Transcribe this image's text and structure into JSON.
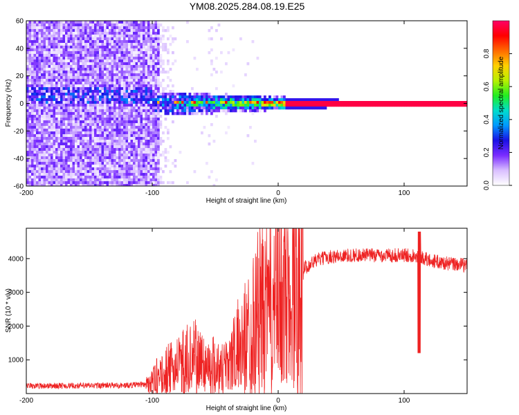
{
  "figure": {
    "title": "YM08.2025.284.08.19.E25"
  },
  "chart_data": [
    {
      "type": "heatmap",
      "xlabel": "Height of straight line (km)",
      "ylabel": "Frequency (Hz)",
      "xlim": [
        -200,
        150
      ],
      "ylim": [
        -60,
        60
      ],
      "xticks": [
        -200,
        -100,
        0,
        100
      ],
      "yticks": [
        -60,
        -40,
        -20,
        0,
        20,
        40,
        60
      ],
      "colorbar": {
        "label": "Normalized spectral amplitude",
        "range": [
          0,
          1
        ],
        "ticks": [
          "0.0",
          "0.2",
          "0.4",
          "0.6",
          "0.8"
        ],
        "colormap": [
          "#ffffff",
          "#d9bfff",
          "#7a2cff",
          "#1a10e6",
          "#0099ff",
          "#00ddcc",
          "#22ee22",
          "#b8f000",
          "#ffd000",
          "#ff6a00",
          "#ff0000",
          "#ff0066"
        ]
      },
      "features": {
        "noise_region_x": [
          -200,
          -95
        ],
        "noise_fade_x": [
          -95,
          -80
        ],
        "sparse_streak_x": [
          -55,
          -48
        ],
        "band_center_hz": 0,
        "band_start_x": -100,
        "band_saturated_from_x": 5,
        "band_halfwidth_hz_at_start": 6,
        "band_halfwidth_hz_at_end": 1.5
      }
    },
    {
      "type": "line",
      "xlabel": "Height of straight line (km)",
      "ylabel": "SNR (10 * v/v)",
      "xlim": [
        -200,
        150
      ],
      "ylim": [
        0,
        4900
      ],
      "xticks": [
        -200,
        -100,
        0,
        100
      ],
      "yticks": [
        1000,
        2000,
        3000,
        4000
      ],
      "color": "#ee2222",
      "profile": [
        [
          -200,
          230
        ],
        [
          -180,
          230
        ],
        [
          -160,
          230
        ],
        [
          -140,
          240
        ],
        [
          -120,
          240
        ],
        [
          -105,
          280
        ],
        [
          -95,
          500
        ],
        [
          -85,
          700
        ],
        [
          -75,
          900
        ],
        [
          -65,
          1000
        ],
        [
          -55,
          800
        ],
        [
          -45,
          800
        ],
        [
          -35,
          1100
        ],
        [
          -25,
          1600
        ],
        [
          -15,
          2300
        ],
        [
          -5,
          2600
        ],
        [
          0,
          2800
        ],
        [
          10,
          3200
        ],
        [
          20,
          3700
        ],
        [
          30,
          3950
        ],
        [
          40,
          4050
        ],
        [
          60,
          4100
        ],
        [
          80,
          4100
        ],
        [
          100,
          4100
        ],
        [
          110,
          4100
        ],
        [
          120,
          3950
        ],
        [
          135,
          3850
        ],
        [
          150,
          3800
        ]
      ],
      "spike_x": 112,
      "spike_values": [
        4800,
        1200
      ]
    }
  ]
}
